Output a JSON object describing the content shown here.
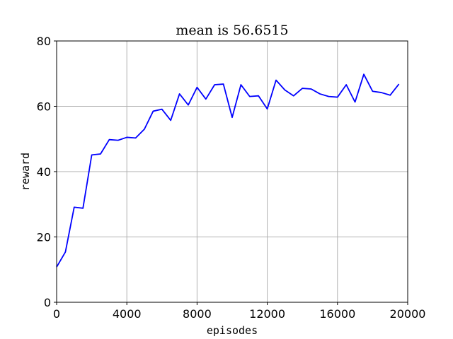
{
  "chart_data": {
    "type": "line",
    "title": "mean is 56.6515",
    "xlabel": "episodes",
    "ylabel": "reward",
    "xlim": [
      0,
      20000
    ],
    "ylim": [
      0,
      80
    ],
    "xticks": [
      0,
      4000,
      8000,
      12000,
      16000,
      20000
    ],
    "yticks": [
      0,
      20,
      40,
      60,
      80
    ],
    "grid": true,
    "series": [
      {
        "color": "#0000ff",
        "x": [
          0,
          500,
          1000,
          1500,
          2000,
          2500,
          3000,
          3500,
          4000,
          4500,
          5000,
          5500,
          6000,
          6500,
          7000,
          7500,
          8000,
          8500,
          9000,
          9500,
          10000,
          10500,
          11000,
          11500,
          12000,
          12500,
          13000,
          13500,
          14000,
          14500,
          15000,
          15500,
          16000,
          16500,
          17000,
          17500,
          18000,
          18500,
          19000,
          19500
        ],
        "y": [
          10.8,
          15.4,
          29.1,
          28.8,
          45.1,
          45.4,
          49.8,
          49.6,
          50.5,
          50.3,
          53.0,
          58.5,
          59.1,
          55.7,
          63.8,
          60.4,
          65.8,
          62.2,
          66.6,
          66.8,
          56.6,
          66.6,
          63.0,
          63.2,
          59.2,
          68.0,
          65.0,
          63.2,
          65.5,
          65.3,
          63.8,
          63.0,
          62.8,
          66.6,
          61.3,
          69.8,
          64.6,
          64.2,
          63.4,
          66.8
        ]
      }
    ]
  }
}
